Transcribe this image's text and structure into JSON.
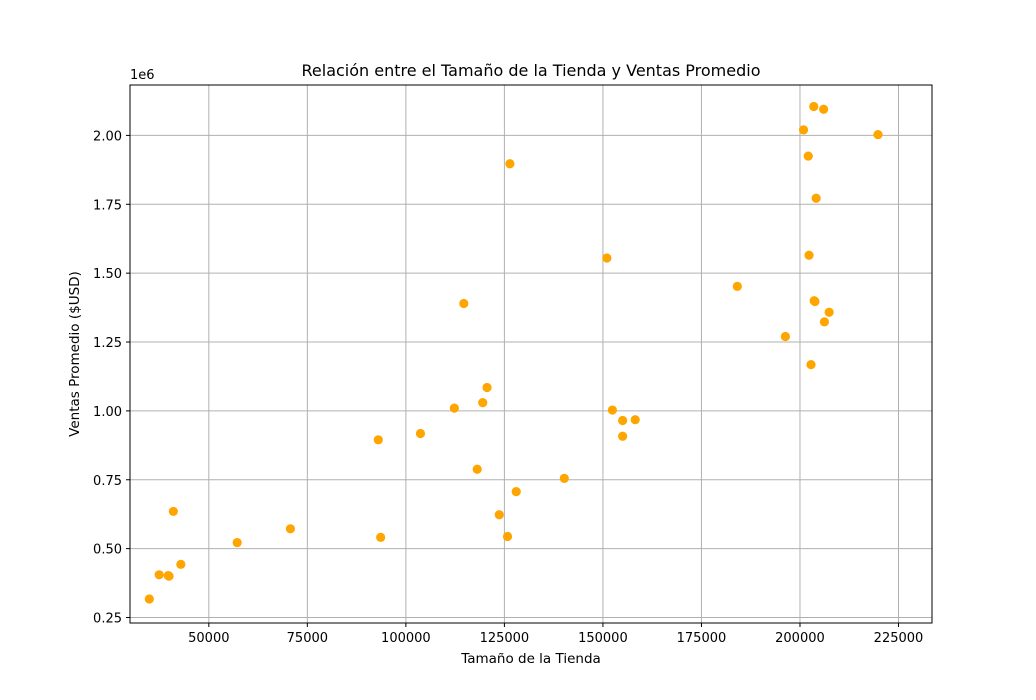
{
  "chart_data": {
    "type": "scatter",
    "title": "Relación entre el Tamaño de la Tienda y Ventas Promedio",
    "xlabel": "Tamaño de la Tienda",
    "ylabel": "Ventas Promedio ($USD)",
    "y_offset_label": "1e6",
    "xlim": [
      30000,
      233500
    ],
    "ylim": [
      0.23,
      2.183
    ],
    "x_ticks": [
      50000,
      75000,
      100000,
      125000,
      150000,
      175000,
      200000,
      225000
    ],
    "x_tick_labels": [
      "50000",
      "75000",
      "100000",
      "125000",
      "150000",
      "175000",
      "200000",
      "225000"
    ],
    "y_ticks": [
      0.25,
      0.5,
      0.75,
      1.0,
      1.25,
      1.5,
      1.75,
      2.0
    ],
    "y_tick_labels": [
      "0.25",
      "0.50",
      "0.75",
      "1.00",
      "1.25",
      "1.50",
      "1.75",
      "2.00"
    ],
    "grid": true,
    "marker_color": "#ffa500",
    "points": [
      {
        "x": 34900,
        "y": 0.317
      },
      {
        "x": 37400,
        "y": 0.405
      },
      {
        "x": 39700,
        "y": 0.402
      },
      {
        "x": 39900,
        "y": 0.4
      },
      {
        "x": 41000,
        "y": 0.635
      },
      {
        "x": 42900,
        "y": 0.443
      },
      {
        "x": 57200,
        "y": 0.522
      },
      {
        "x": 70700,
        "y": 0.572
      },
      {
        "x": 93000,
        "y": 0.895
      },
      {
        "x": 93600,
        "y": 0.541
      },
      {
        "x": 103700,
        "y": 0.918
      },
      {
        "x": 112300,
        "y": 1.01
      },
      {
        "x": 114700,
        "y": 1.39
      },
      {
        "x": 118100,
        "y": 0.788
      },
      {
        "x": 119500,
        "y": 1.03
      },
      {
        "x": 120600,
        "y": 1.085
      },
      {
        "x": 123700,
        "y": 0.623
      },
      {
        "x": 125800,
        "y": 0.544
      },
      {
        "x": 126400,
        "y": 1.897
      },
      {
        "x": 128000,
        "y": 0.707
      },
      {
        "x": 140200,
        "y": 0.755
      },
      {
        "x": 151000,
        "y": 1.555
      },
      {
        "x": 152400,
        "y": 1.003
      },
      {
        "x": 155000,
        "y": 0.965
      },
      {
        "x": 155000,
        "y": 0.908
      },
      {
        "x": 158200,
        "y": 0.968
      },
      {
        "x": 184100,
        "y": 1.452
      },
      {
        "x": 196300,
        "y": 1.27
      },
      {
        "x": 200900,
        "y": 2.02
      },
      {
        "x": 202100,
        "y": 1.925
      },
      {
        "x": 202300,
        "y": 1.565
      },
      {
        "x": 202800,
        "y": 1.168
      },
      {
        "x": 203500,
        "y": 2.105
      },
      {
        "x": 203600,
        "y": 1.4
      },
      {
        "x": 203800,
        "y": 1.397
      },
      {
        "x": 204100,
        "y": 1.772
      },
      {
        "x": 206000,
        "y": 2.095
      },
      {
        "x": 206200,
        "y": 1.323
      },
      {
        "x": 207400,
        "y": 1.358
      },
      {
        "x": 219800,
        "y": 2.003
      }
    ]
  }
}
